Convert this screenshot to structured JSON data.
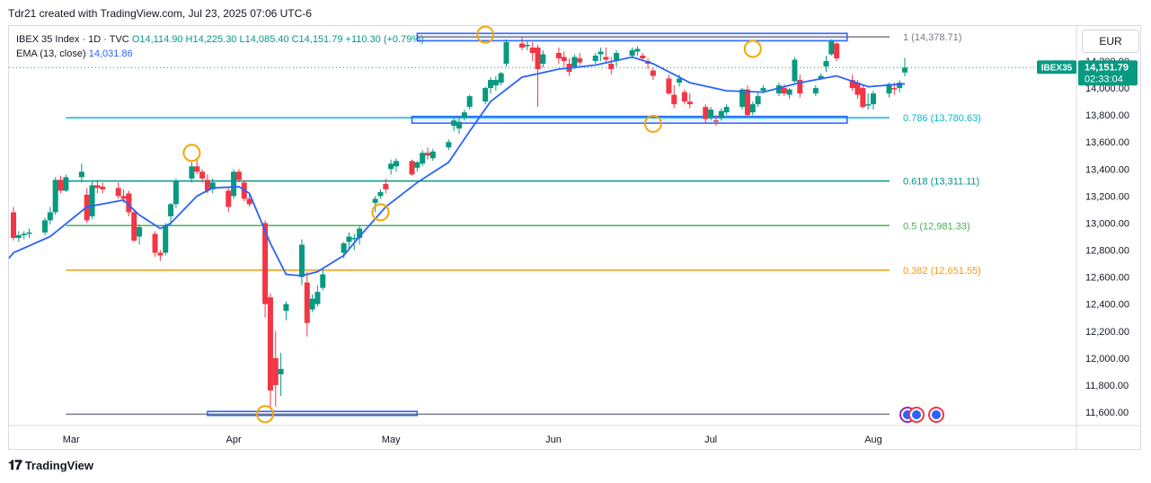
{
  "header": {
    "attribution": "Tdr21 created with TradingView.com, Jul 23, 2025 07:06 UTC-6"
  },
  "legend": {
    "symbol": "IBEX 35 Index · 1D · TVC",
    "ohlc": "O14,114.90  H14,225.30  L14,085.40  C14,151.79  +110.30 (+0.79%)",
    "ema_label": "EMA (13, close)",
    "ema_value": "14,031.86"
  },
  "currency_button": "EUR",
  "price_tag": {
    "symbol": "IBEX35",
    "price": "14,151.79",
    "countdown": "02:33:04",
    "color": "#089981"
  },
  "footer": {
    "brand": "TradingView"
  },
  "colors": {
    "up": "#089981",
    "down": "#f23645",
    "ema": "#2962ff",
    "marker": "#f7a600"
  },
  "chart_data": {
    "type": "candlestick",
    "ylim": [
      11520,
      14470
    ],
    "y_ticks": [
      11600,
      11800,
      12000,
      12200,
      12400,
      12600,
      12800,
      13000,
      13200,
      13400,
      13600,
      13800,
      14000,
      14200
    ],
    "y_tick_labels": [
      "11,600.00",
      "11,800.00",
      "12,000.00",
      "12,200.00",
      "12,400.00",
      "12,600.00",
      "12,800.00",
      "13,000.00",
      "13,200.00",
      "13,400.00",
      "13,600.00",
      "13,800.00",
      "14,000.00",
      "14,200.00"
    ],
    "x_labels": [
      {
        "label": "Mar",
        "date": "2025-03-01"
      },
      {
        "label": "Apr",
        "date": "2025-04-01"
      },
      {
        "label": "May",
        "date": "2025-05-01"
      },
      {
        "label": "Jun",
        "date": "2025-06-01"
      },
      {
        "label": "Jul",
        "date": "2025-07-01"
      },
      {
        "label": "Aug",
        "date": "2025-08-01"
      }
    ],
    "x_range": [
      "2025-02-18",
      "2025-08-07"
    ],
    "fib_levels": [
      {
        "ratio": "1",
        "value": 14378.71,
        "label": "1 (14,378.71)",
        "color": "#787b86",
        "start": "2025-05-06"
      },
      {
        "ratio": "0.786",
        "value": 13780.63,
        "label": "0.786 (13,780.63)",
        "color": "#00bcd4",
        "start": "2025-02-28"
      },
      {
        "ratio": "0.618",
        "value": 13311.11,
        "label": "0.618 (13,311.11)",
        "color": "#009688",
        "start": "2025-02-28"
      },
      {
        "ratio": "0.5",
        "value": 12981.33,
        "label": "0.5 (12,981.33)",
        "color": "#4caf50",
        "start": "2025-02-28"
      },
      {
        "ratio": "0.382",
        "value": 12651.55,
        "label": "0.382 (12,651.55)",
        "color": "#ff9800",
        "start": "2025-02-28"
      },
      {
        "ratio": "0",
        "value": 11583.96,
        "label": ".96)",
        "color": "#787b86",
        "start": "2025-02-28"
      }
    ],
    "boxes": [
      {
        "from": "2025-05-06",
        "to": "2025-07-27",
        "y1": 14350,
        "y2": 14405
      },
      {
        "from": "2025-05-05",
        "to": "2025-07-27",
        "y1": 13740,
        "y2": 13790
      },
      {
        "from": "2025-03-27",
        "to": "2025-05-06",
        "y1": 11575,
        "y2": 11605
      }
    ],
    "markers": [
      {
        "date": "2025-03-24",
        "value": 13520
      },
      {
        "date": "2025-04-07",
        "value": 11585
      },
      {
        "date": "2025-04-29",
        "value": 13080
      },
      {
        "date": "2025-05-19",
        "value": 14395
      },
      {
        "date": "2025-06-20",
        "value": 13735
      },
      {
        "date": "2025-07-09",
        "value": 14290
      }
    ],
    "candles": [
      [
        "2025-02-18",
        13080,
        13120,
        12870,
        12890
      ],
      [
        "2025-02-19",
        12890,
        12940,
        12860,
        12910
      ],
      [
        "2025-02-20",
        12910,
        12940,
        12880,
        12920
      ],
      [
        "2025-02-21",
        12920,
        12960,
        12890,
        12930
      ],
      [
        "2025-02-24",
        12930,
        13040,
        12910,
        13020
      ],
      [
        "2025-02-25",
        13020,
        13120,
        12990,
        13080
      ],
      [
        "2025-02-26",
        13080,
        13340,
        13060,
        13320
      ],
      [
        "2025-02-27",
        13320,
        13350,
        13220,
        13240
      ],
      [
        "2025-02-28",
        13240,
        13360,
        13230,
        13340
      ],
      [
        "2025-03-03",
        13340,
        13440,
        13300,
        13380
      ],
      [
        "2025-03-04",
        13210,
        13260,
        13000,
        13020
      ],
      [
        "2025-03-05",
        13050,
        13310,
        13030,
        13280
      ],
      [
        "2025-03-06",
        13280,
        13320,
        13220,
        13260
      ],
      [
        "2025-03-07",
        13270,
        13300,
        13220,
        13250
      ],
      [
        "2025-03-10",
        13260,
        13300,
        13180,
        13200
      ],
      [
        "2025-03-11",
        13200,
        13250,
        13150,
        13180
      ],
      [
        "2025-03-12",
        13220,
        13240,
        13050,
        13080
      ],
      [
        "2025-03-13",
        13080,
        13100,
        12860,
        12870
      ],
      [
        "2025-03-14",
        12900,
        12990,
        12840,
        12970
      ],
      [
        "2025-03-17",
        12920,
        12940,
        12750,
        12780
      ],
      [
        "2025-03-18",
        12780,
        12800,
        12720,
        12760
      ],
      [
        "2025-03-19",
        12780,
        13000,
        12760,
        12980
      ],
      [
        "2025-03-20",
        13050,
        13150,
        12980,
        13140
      ],
      [
        "2025-03-21",
        13140,
        13330,
        13110,
        13310
      ],
      [
        "2025-03-24",
        13330,
        13450,
        13300,
        13420
      ],
      [
        "2025-03-25",
        13420,
        13470,
        13360,
        13380
      ],
      [
        "2025-03-26",
        13380,
        13400,
        13300,
        13330
      ],
      [
        "2025-03-27",
        13320,
        13360,
        13220,
        13240
      ],
      [
        "2025-03-28",
        13250,
        13330,
        13220,
        13300
      ],
      [
        "2025-03-31",
        13240,
        13260,
        13080,
        13120
      ],
      [
        "2025-04-01",
        13200,
        13400,
        13180,
        13380
      ],
      [
        "2025-04-02",
        13380,
        13400,
        13300,
        13320
      ],
      [
        "2025-04-03",
        13300,
        13320,
        13160,
        13180
      ],
      [
        "2025-04-04",
        13180,
        13220,
        13120,
        13140
      ],
      [
        "2025-04-07",
        13000,
        13020,
        12300,
        12400
      ],
      [
        "2025-04-08",
        12450,
        12480,
        11620,
        11760
      ],
      [
        "2025-04-09",
        12000,
        12200,
        11640,
        11800
      ],
      [
        "2025-04-10",
        11880,
        12040,
        11720,
        11920
      ],
      [
        "2025-04-11",
        12350,
        12420,
        12280,
        12400
      ],
      [
        "2025-04-14",
        12600,
        12880,
        12540,
        12840
      ],
      [
        "2025-04-15",
        12560,
        12640,
        12160,
        12260
      ],
      [
        "2025-04-16",
        12360,
        12470,
        12340,
        12440
      ],
      [
        "2025-04-17",
        12400,
        12540,
        12380,
        12490
      ],
      [
        "2025-04-18",
        12520,
        12660,
        12500,
        12620
      ],
      [
        "2025-04-22",
        12780,
        12860,
        12740,
        12850
      ],
      [
        "2025-04-23",
        12860,
        12930,
        12810,
        12900
      ],
      [
        "2025-04-24",
        12880,
        12920,
        12800,
        12890
      ],
      [
        "2025-04-25",
        12890,
        12980,
        12840,
        12960
      ],
      [
        "2025-04-28",
        13150,
        13200,
        13080,
        13180
      ],
      [
        "2025-04-29",
        13200,
        13250,
        13180,
        13230
      ],
      [
        "2025-04-30",
        13290,
        13330,
        13220,
        13250
      ],
      [
        "2025-05-01",
        13400,
        13470,
        13360,
        13440
      ],
      [
        "2025-05-02",
        13420,
        13480,
        13380,
        13460
      ],
      [
        "2025-05-05",
        13460,
        13470,
        13350,
        13360
      ],
      [
        "2025-05-06",
        13410,
        13460,
        13380,
        13450
      ],
      [
        "2025-05-07",
        13440,
        13540,
        13420,
        13520
      ],
      [
        "2025-05-08",
        13520,
        13560,
        13470,
        13500
      ],
      [
        "2025-05-09",
        13480,
        13550,
        13460,
        13530
      ],
      [
        "2025-05-12",
        13560,
        13620,
        13540,
        13600
      ],
      [
        "2025-05-13",
        13720,
        13780,
        13680,
        13760
      ],
      [
        "2025-05-14",
        13700,
        13790,
        13660,
        13750
      ],
      [
        "2025-05-15",
        13780,
        13840,
        13760,
        13820
      ],
      [
        "2025-05-16",
        13860,
        13950,
        13840,
        13940
      ],
      [
        "2025-05-19",
        13900,
        14010,
        13880,
        14000
      ],
      [
        "2025-05-20",
        14000,
        14080,
        13960,
        14060
      ],
      [
        "2025-05-21",
        14020,
        14090,
        13980,
        14060
      ],
      [
        "2025-05-22",
        14040,
        14120,
        14020,
        14110
      ],
      [
        "2025-05-23",
        14180,
        14360,
        14160,
        14340
      ],
      [
        "2025-05-26",
        14330,
        14380,
        14280,
        14300
      ],
      [
        "2025-05-27",
        14310,
        14350,
        14280,
        14320
      ],
      [
        "2025-05-28",
        14300,
        14340,
        14200,
        14260
      ],
      [
        "2025-05-29",
        14300,
        14320,
        13860,
        14140
      ],
      [
        "2025-05-30",
        14180,
        14280,
        14150,
        14250
      ],
      [
        "2025-06-02",
        14260,
        14300,
        14180,
        14220
      ],
      [
        "2025-06-03",
        14230,
        14270,
        14160,
        14200
      ],
      [
        "2025-06-04",
        14180,
        14220,
        14090,
        14120
      ],
      [
        "2025-06-05",
        14160,
        14250,
        14140,
        14230
      ],
      [
        "2025-06-06",
        14220,
        14260,
        14170,
        14190
      ],
      [
        "2025-06-09",
        14200,
        14260,
        14180,
        14240
      ],
      [
        "2025-06-10",
        14250,
        14300,
        14200,
        14270
      ],
      [
        "2025-06-11",
        14230,
        14300,
        14190,
        14210
      ],
      [
        "2025-06-12",
        14180,
        14230,
        14100,
        14140
      ],
      [
        "2025-06-13",
        14200,
        14280,
        14160,
        14260
      ],
      [
        "2025-06-16",
        14240,
        14300,
        14220,
        14280
      ],
      [
        "2025-06-17",
        14270,
        14310,
        14240,
        14290
      ],
      [
        "2025-06-18",
        14240,
        14260,
        14200,
        14220
      ],
      [
        "2025-06-19",
        14200,
        14220,
        14140,
        14180
      ],
      [
        "2025-06-20",
        14130,
        14150,
        14060,
        14090
      ],
      [
        "2025-06-23",
        14070,
        14100,
        13950,
        13960
      ],
      [
        "2025-06-24",
        13950,
        14020,
        13850,
        13880
      ],
      [
        "2025-06-25",
        14040,
        14100,
        14010,
        14070
      ],
      [
        "2025-06-26",
        13970,
        13990,
        13880,
        13900
      ],
      [
        "2025-06-27",
        13900,
        13960,
        13850,
        13880
      ],
      [
        "2025-06-30",
        13860,
        13880,
        13740,
        13770
      ],
      [
        "2025-07-01",
        13780,
        13860,
        13760,
        13840
      ],
      [
        "2025-07-02",
        13760,
        13800,
        13720,
        13750
      ],
      [
        "2025-07-03",
        13780,
        13850,
        13760,
        13830
      ],
      [
        "2025-07-04",
        13820,
        13880,
        13800,
        13860
      ],
      [
        "2025-07-07",
        13860,
        14000,
        13840,
        13990
      ],
      [
        "2025-07-08",
        13990,
        14020,
        13790,
        13800
      ],
      [
        "2025-07-09",
        13820,
        13900,
        13800,
        13880
      ],
      [
        "2025-07-10",
        13880,
        13970,
        13860,
        13940
      ],
      [
        "2025-07-11",
        13980,
        14020,
        13960,
        14000
      ],
      [
        "2025-07-14",
        13960,
        14040,
        13940,
        14020
      ],
      [
        "2025-07-15",
        14000,
        14030,
        13940,
        13960
      ],
      [
        "2025-07-16",
        13950,
        14000,
        13920,
        13990
      ],
      [
        "2025-07-17",
        14050,
        14230,
        14040,
        14210
      ],
      [
        "2025-07-18",
        14060,
        14100,
        13930,
        13960
      ],
      [
        "2025-07-21",
        13960,
        14020,
        13940,
        14000
      ],
      [
        "2025-07-22",
        14070,
        14110,
        14060,
        14090
      ],
      [
        "2025-07-23",
        14160,
        14240,
        14120,
        14200
      ],
      [
        "2025-07-24",
        14250,
        14360,
        14240,
        14350
      ],
      [
        "2025-07-25",
        14330,
        14340,
        14200,
        14220
      ],
      [
        "2025-07-28",
        14060,
        14100,
        13980,
        14000
      ],
      [
        "2025-07-29",
        14040,
        14060,
        13920,
        13950
      ],
      [
        "2025-07-30",
        14000,
        14020,
        13850,
        13860
      ],
      [
        "2025-07-31",
        13870,
        13960,
        13840,
        13880
      ],
      [
        "2025-08-01",
        13880,
        13980,
        13840,
        13960
      ],
      [
        "2025-08-04",
        13960,
        14040,
        13930,
        14030
      ],
      [
        "2025-08-05",
        14000,
        14040,
        13950,
        13990
      ],
      [
        "2025-08-06",
        14000,
        14060,
        13970,
        14040
      ],
      [
        "2025-08-07",
        14114.9,
        14225.3,
        14085.4,
        14151.79
      ]
    ],
    "ema": [
      [
        "2025-02-18",
        12780
      ],
      [
        "2025-02-25",
        12900
      ],
      [
        "2025-03-04",
        13120
      ],
      [
        "2025-03-11",
        13170
      ],
      [
        "2025-03-14",
        13060
      ],
      [
        "2025-03-18",
        12960
      ],
      [
        "2025-03-20",
        13000
      ],
      [
        "2025-03-25",
        13200
      ],
      [
        "2025-03-28",
        13260
      ],
      [
        "2025-04-02",
        13270
      ],
      [
        "2025-04-04",
        13220
      ],
      [
        "2025-04-08",
        12850
      ],
      [
        "2025-04-11",
        12620
      ],
      [
        "2025-04-14",
        12610
      ],
      [
        "2025-04-17",
        12640
      ],
      [
        "2025-04-22",
        12760
      ],
      [
        "2025-04-25",
        12900
      ],
      [
        "2025-04-30",
        13120
      ],
      [
        "2025-05-06",
        13300
      ],
      [
        "2025-05-12",
        13450
      ],
      [
        "2025-05-16",
        13680
      ],
      [
        "2025-05-20",
        13900
      ],
      [
        "2025-05-26",
        14080
      ],
      [
        "2025-06-02",
        14140
      ],
      [
        "2025-06-09",
        14170
      ],
      [
        "2025-06-16",
        14230
      ],
      [
        "2025-06-20",
        14180
      ],
      [
        "2025-06-27",
        14040
      ],
      [
        "2025-07-04",
        13980
      ],
      [
        "2025-07-11",
        13970
      ],
      [
        "2025-07-18",
        14040
      ],
      [
        "2025-07-25",
        14090
      ],
      [
        "2025-07-31",
        14010
      ],
      [
        "2025-08-07",
        14031.86
      ]
    ]
  }
}
